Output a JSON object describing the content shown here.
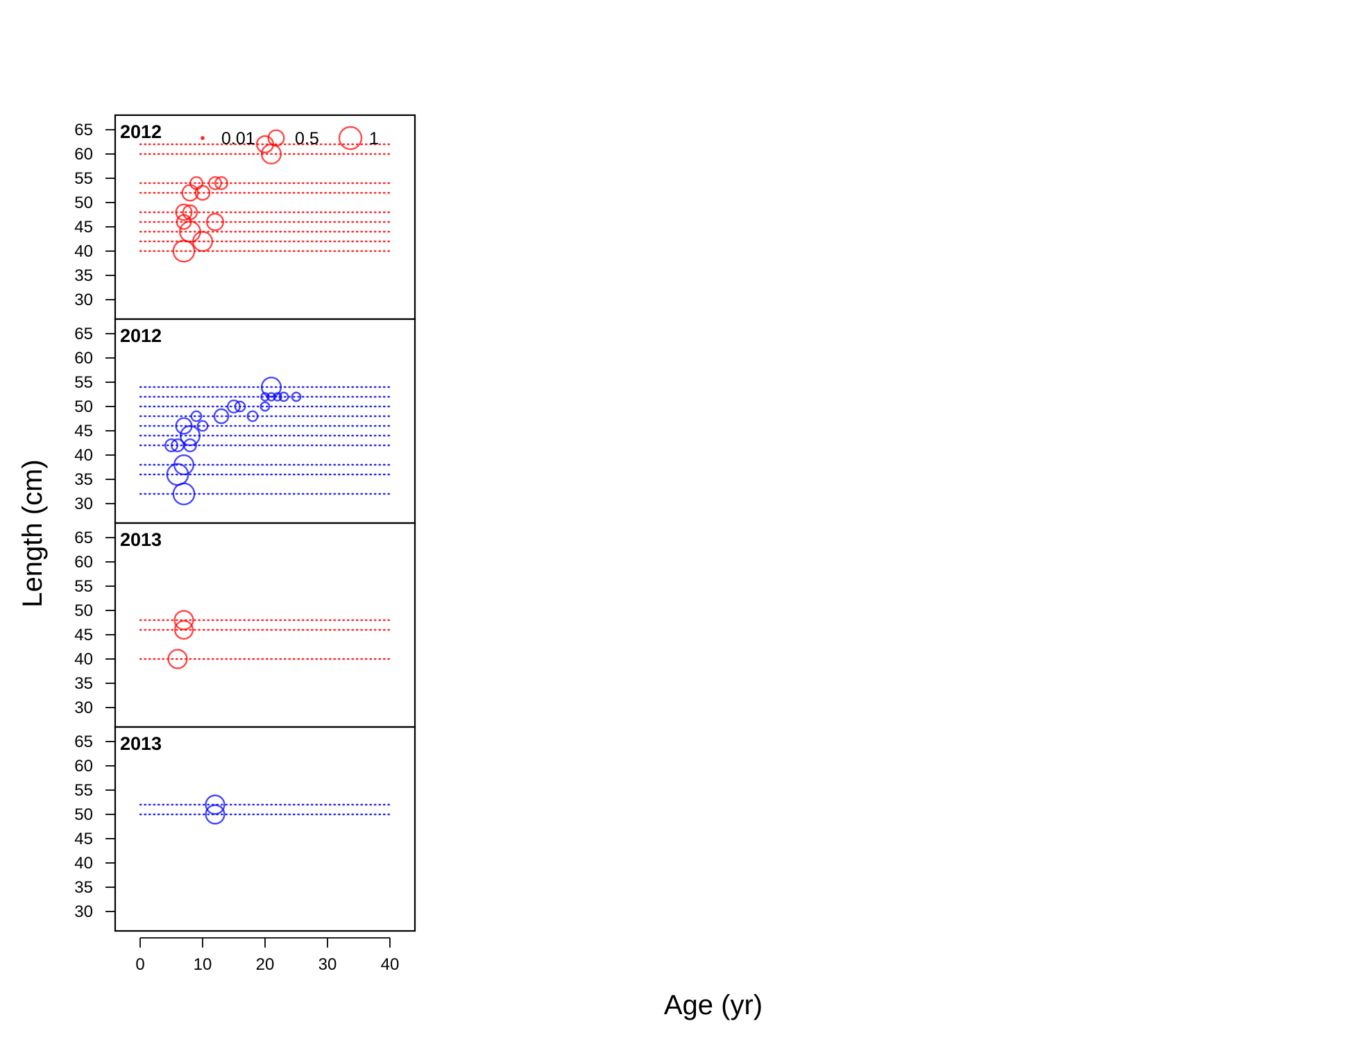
{
  "chart_data": {
    "type": "scatter",
    "subtype": "bubble",
    "xlabel": "Age (yr)",
    "ylabel": "Length (cm)",
    "xlim": [
      -4,
      44
    ],
    "ylim": [
      26,
      68
    ],
    "x_ticks": [
      0,
      10,
      20,
      30,
      40
    ],
    "y_ticks": [
      30,
      35,
      40,
      45,
      50,
      55,
      60,
      65
    ],
    "x_range_of_bins": [
      0,
      40
    ],
    "grid": false,
    "colors": {
      "female": "#ff0000",
      "male": "#0000ff",
      "axis": "#000000"
    },
    "legend": {
      "placement": "top (first panel)",
      "entries": [
        {
          "label": "0.01",
          "value": 0.01
        },
        {
          "label": "0.5",
          "value": 0.5
        },
        {
          "label": "1",
          "value": 1
        }
      ]
    },
    "panels": [
      {
        "title": "2012",
        "color": "#ff0000",
        "bins": [
          40,
          42,
          44,
          46,
          48,
          52,
          54,
          60,
          62
        ],
        "points": [
          {
            "x": 7,
            "y": 40,
            "v": 0.9
          },
          {
            "x": 10,
            "y": 42,
            "v": 0.75
          },
          {
            "x": 8,
            "y": 44,
            "v": 0.85
          },
          {
            "x": 7,
            "y": 46,
            "v": 0.4
          },
          {
            "x": 12,
            "y": 46,
            "v": 0.55
          },
          {
            "x": 7,
            "y": 48,
            "v": 0.5
          },
          {
            "x": 8,
            "y": 48,
            "v": 0.4
          },
          {
            "x": 8,
            "y": 52,
            "v": 0.5
          },
          {
            "x": 10,
            "y": 52,
            "v": 0.4
          },
          {
            "x": 9,
            "y": 54,
            "v": 0.3
          },
          {
            "x": 12,
            "y": 54,
            "v": 0.3
          },
          {
            "x": 13,
            "y": 54,
            "v": 0.3
          },
          {
            "x": 20,
            "y": 62,
            "v": 0.55
          },
          {
            "x": 21,
            "y": 60,
            "v": 0.75
          }
        ]
      },
      {
        "title": "2012",
        "color": "#0000ff",
        "bins": [
          32,
          36,
          38,
          42,
          44,
          46,
          48,
          50,
          52,
          54
        ],
        "points": [
          {
            "x": 7,
            "y": 32,
            "v": 0.9
          },
          {
            "x": 6,
            "y": 36,
            "v": 0.9
          },
          {
            "x": 7,
            "y": 38,
            "v": 0.75
          },
          {
            "x": 5,
            "y": 42,
            "v": 0.3
          },
          {
            "x": 6,
            "y": 42,
            "v": 0.3
          },
          {
            "x": 8,
            "y": 42,
            "v": 0.3
          },
          {
            "x": 8,
            "y": 44,
            "v": 0.75
          },
          {
            "x": 7,
            "y": 46,
            "v": 0.5
          },
          {
            "x": 10,
            "y": 46,
            "v": 0.2
          },
          {
            "x": 9,
            "y": 48,
            "v": 0.2
          },
          {
            "x": 13,
            "y": 48,
            "v": 0.4
          },
          {
            "x": 18,
            "y": 48,
            "v": 0.2
          },
          {
            "x": 15,
            "y": 50,
            "v": 0.3
          },
          {
            "x": 16,
            "y": 50,
            "v": 0.2
          },
          {
            "x": 20,
            "y": 50,
            "v": 0.15
          },
          {
            "x": 20,
            "y": 52,
            "v": 0.12
          },
          {
            "x": 21,
            "y": 52,
            "v": 0.12
          },
          {
            "x": 22,
            "y": 52,
            "v": 0.12
          },
          {
            "x": 23,
            "y": 52,
            "v": 0.15
          },
          {
            "x": 25,
            "y": 52,
            "v": 0.15
          },
          {
            "x": 21,
            "y": 54,
            "v": 0.75
          }
        ]
      },
      {
        "title": "2013",
        "color": "#ff0000",
        "bins": [
          40,
          46,
          48
        ],
        "points": [
          {
            "x": 6,
            "y": 40,
            "v": 0.7
          },
          {
            "x": 7,
            "y": 46,
            "v": 0.65
          },
          {
            "x": 7,
            "y": 48,
            "v": 0.7
          }
        ]
      },
      {
        "title": "2013",
        "color": "#0000ff",
        "bins": [
          50,
          52
        ],
        "points": [
          {
            "x": 12,
            "y": 50,
            "v": 0.7
          },
          {
            "x": 12,
            "y": 52,
            "v": 0.7
          }
        ]
      }
    ]
  }
}
